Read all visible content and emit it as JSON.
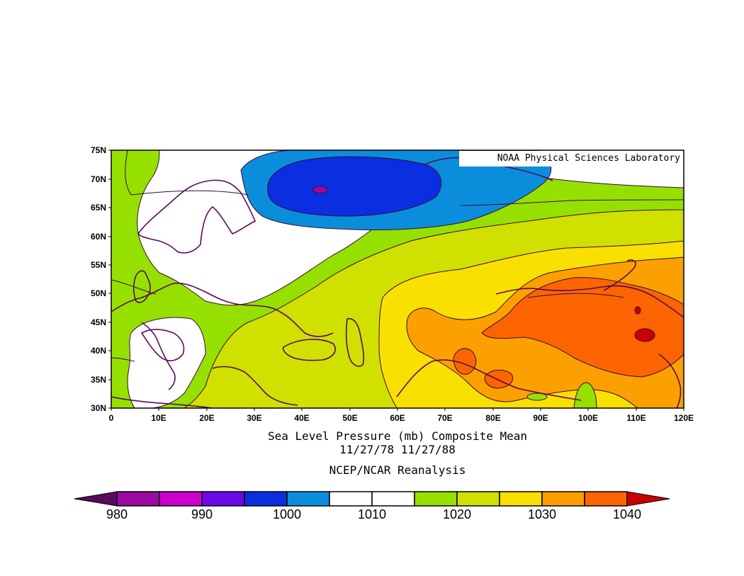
{
  "map": {
    "credit": "NOAA Physical Sciences Laboratory",
    "region": {
      "lon_min": 0,
      "lon_max": 120,
      "lat_min": 30,
      "lat_max": 75
    },
    "lat_ticks": [
      "30N",
      "35N",
      "40N",
      "45N",
      "50N",
      "55N",
      "60N",
      "65N",
      "70N",
      "75N"
    ],
    "lon_ticks": [
      "0",
      "10E",
      "20E",
      "30E",
      "40E",
      "50E",
      "60E",
      "70E",
      "80E",
      "90E",
      "100E",
      "110E",
      "120E"
    ]
  },
  "caption": {
    "line1": "Sea Level Pressure (mb) Composite Mean",
    "line2": "11/27/78 11/27/88",
    "line3": "NCEP/NCAR Reanalysis"
  },
  "colorbar": {
    "labels": [
      "980",
      "990",
      "1000",
      "1010",
      "1020",
      "1030",
      "1040"
    ],
    "colors": [
      "#5a0a5a",
      "#9a0aa0",
      "#cc00cc",
      "#6a0ae6",
      "#0a2ee0",
      "#0a8edc",
      "#ffffff",
      "#ffffff",
      "#96e000",
      "#d0e000",
      "#fae000",
      "#fca000",
      "#fc6400",
      "#c80000"
    ]
  },
  "field_colors": {
    "low_deep": "#0a2ee0",
    "low": "#0a8edc",
    "neutral": "#ffffff",
    "green": "#96e000",
    "yellowgreen": "#d0e000",
    "yellow": "#fae000",
    "orange": "#fca000",
    "darkorange": "#fc6400",
    "red": "#c80000",
    "purple": "#9a0aa0",
    "coast": "#5a0a5a"
  }
}
